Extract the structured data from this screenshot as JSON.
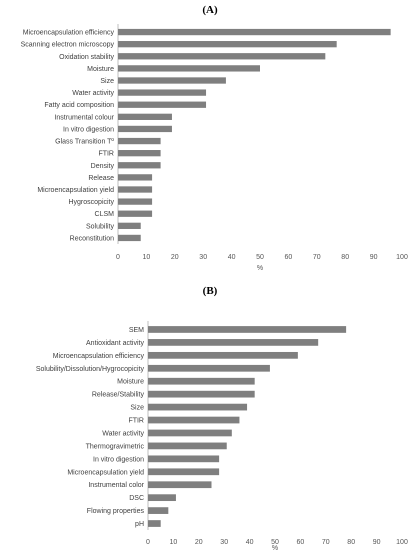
{
  "chart_data": [
    {
      "type": "bar",
      "orientation": "horizontal",
      "title": "(A)",
      "xlabel": "%",
      "xlim": [
        0,
        100
      ],
      "xticks": [
        0,
        10,
        20,
        30,
        40,
        50,
        60,
        70,
        80,
        90,
        100
      ],
      "bar_color": "#7f7f7f",
      "grid": false,
      "categories": [
        "Microencapsulation efficiency",
        "Scanning electron microscopy",
        "Oxidation stability",
        "Moisture",
        "Size",
        "Water activity",
        "Fatty acid composition",
        "Instrumental colour",
        "In vitro digestion",
        "Glass Transition Tº",
        "FTIR",
        "Density",
        "Release",
        "Microencapsulation yield",
        "Hygroscopicity",
        "CLSM",
        "Solubility",
        "Reconstitution"
      ],
      "values": [
        96,
        77,
        73,
        50,
        38,
        31,
        31,
        19,
        19,
        15,
        15,
        15,
        12,
        12,
        12,
        12,
        8,
        8
      ]
    },
    {
      "type": "bar",
      "orientation": "horizontal",
      "title": "(B)",
      "xlabel": "%",
      "xlim": [
        0,
        100
      ],
      "xticks": [
        0,
        10,
        20,
        30,
        40,
        50,
        60,
        70,
        80,
        90,
        100
      ],
      "bar_color": "#7f7f7f",
      "grid": false,
      "categories": [
        "SEM",
        "Antioxidant activity",
        "Microencapsulation efficiency",
        "Solubility/Dissolution/Hygrocopicity",
        "Moisture",
        "Release/Stability",
        "Size",
        "FTIR",
        "Water activity",
        "Thermogravimetric",
        "In vitro digestion",
        "Microencapsulation yield",
        "Instrumental color",
        "DSC",
        "Flowing properties",
        "pH"
      ],
      "values": [
        78,
        67,
        59,
        48,
        42,
        42,
        39,
        36,
        33,
        31,
        28,
        28,
        25,
        11,
        8,
        5
      ]
    }
  ]
}
